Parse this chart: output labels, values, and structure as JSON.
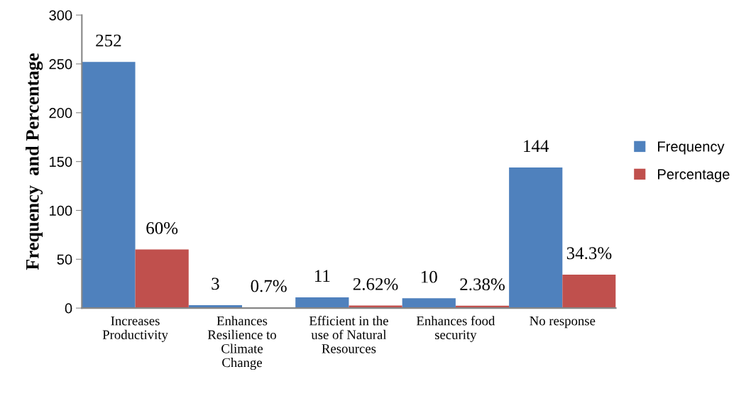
{
  "chart_data": {
    "type": "bar",
    "ylabel": "Frequency  and Percentage",
    "categories": [
      "Increases\nProductivity",
      "Enhances\nResilience to\nClimate\nChange",
      "Efficient in the\nuse of Natural\nResources",
      "Enhances food\nsecurity",
      "No response"
    ],
    "series": [
      {
        "name": "Frequency",
        "color": "#4f81bd",
        "values": [
          252,
          3,
          11,
          10,
          144
        ],
        "value_labels": [
          "252",
          "3",
          "11",
          "10",
          "144"
        ]
      },
      {
        "name": "Percentage",
        "color": "#c0504d",
        "values": [
          60,
          0.7,
          2.62,
          2.38,
          34.3
        ],
        "value_labels": [
          "60%",
          "0.7%",
          "2.62%",
          "2.38%",
          "34.3%"
        ]
      }
    ],
    "ylim": [
      0,
      300
    ],
    "yticks": [
      0,
      50,
      100,
      150,
      200,
      250,
      300
    ],
    "grid": false,
    "legend": "right"
  }
}
